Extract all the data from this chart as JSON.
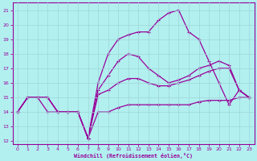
{
  "xlabel": "Windchill (Refroidissement éolien,°C)",
  "bg_color": "#b2f0f0",
  "line_color": "#990099",
  "grid_color": "#c8e8e8",
  "xlim": [
    -0.5,
    23.5
  ],
  "ylim": [
    11.8,
    21.5
  ],
  "xticks": [
    0,
    1,
    2,
    3,
    4,
    5,
    6,
    7,
    8,
    9,
    10,
    11,
    12,
    13,
    14,
    15,
    16,
    17,
    18,
    19,
    20,
    21,
    22,
    23
  ],
  "yticks": [
    12,
    13,
    14,
    15,
    16,
    17,
    18,
    19,
    20,
    21
  ],
  "line1_x": [
    0,
    1,
    2,
    3,
    4,
    5,
    6,
    7,
    8,
    9,
    10,
    11,
    12,
    13,
    14,
    15,
    16,
    17,
    18,
    19,
    20,
    21,
    22,
    23
  ],
  "line1_y": [
    14.0,
    15.0,
    15.0,
    14.0,
    14.0,
    14.0,
    14.0,
    12.2,
    14.0,
    14.0,
    14.3,
    14.5,
    14.5,
    14.5,
    14.5,
    14.5,
    14.5,
    14.5,
    14.7,
    14.8,
    14.8,
    14.8,
    15.0,
    15.0
  ],
  "line2_x": [
    0,
    1,
    2,
    3,
    4,
    5,
    6,
    7,
    8,
    9,
    10,
    11,
    12,
    13,
    14,
    15,
    16,
    17,
    18,
    19,
    20,
    21,
    22,
    23
  ],
  "line2_y": [
    14.0,
    15.0,
    15.0,
    15.0,
    14.0,
    14.0,
    14.0,
    12.2,
    15.2,
    15.5,
    16.0,
    16.3,
    16.3,
    16.0,
    15.8,
    15.8,
    16.0,
    16.2,
    16.5,
    16.8,
    17.0,
    17.0,
    15.5,
    15.0
  ],
  "line3_x": [
    0,
    1,
    2,
    3,
    4,
    5,
    6,
    7,
    8,
    9,
    10,
    11,
    12,
    13,
    14,
    15,
    16,
    17,
    18,
    19,
    20,
    21,
    22,
    23
  ],
  "line3_y": [
    14.0,
    15.0,
    15.0,
    15.0,
    14.0,
    14.0,
    14.0,
    12.2,
    15.5,
    16.5,
    17.5,
    18.0,
    17.8,
    17.0,
    16.5,
    16.0,
    16.2,
    16.5,
    17.0,
    17.2,
    17.5,
    17.2,
    15.5,
    15.0
  ],
  "line4_x": [
    0,
    1,
    2,
    3,
    4,
    5,
    6,
    7,
    8,
    9,
    10,
    11,
    12,
    13,
    14,
    15,
    16,
    17,
    18,
    19,
    20,
    21,
    22,
    23
  ],
  "line4_y": [
    14.0,
    15.0,
    15.0,
    15.0,
    14.0,
    14.0,
    14.0,
    12.2,
    16.0,
    18.0,
    19.0,
    19.3,
    19.5,
    19.5,
    20.3,
    20.8,
    21.0,
    19.5,
    19.0,
    17.5,
    16.0,
    14.5,
    15.5,
    15.0
  ]
}
